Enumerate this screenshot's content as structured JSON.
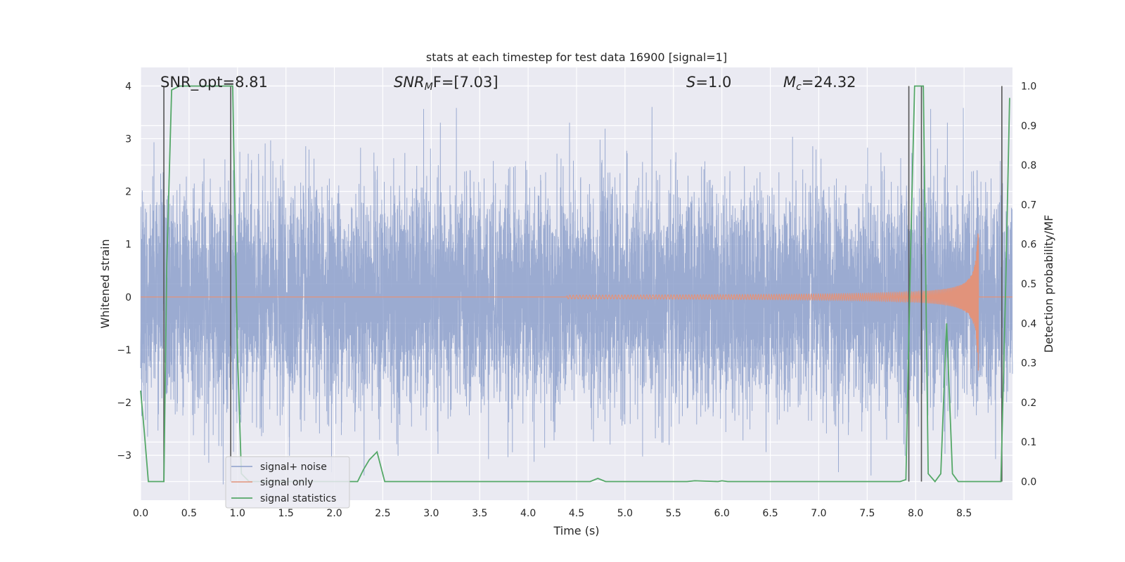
{
  "chart_data": {
    "type": "line",
    "title": "stats at each timestep for test data 16900 [signal=1]",
    "xlabel": "Time (s)",
    "ylabel_left": "Whitened strain",
    "ylabel_right": "Detection probability/MF",
    "xlim": [
      0.0,
      9.0
    ],
    "ylim_left": [
      -3.85,
      4.35
    ],
    "ylim_right": [
      -0.047,
      1.047
    ],
    "x_ticks": [
      "0.0",
      "0.5",
      "1.0",
      "1.5",
      "2.0",
      "2.5",
      "3.0",
      "3.5",
      "4.0",
      "4.5",
      "5.0",
      "5.5",
      "6.0",
      "6.5",
      "7.0",
      "7.5",
      "8.0",
      "8.5"
    ],
    "x_tick_values": [
      0.0,
      0.5,
      1.0,
      1.5,
      2.0,
      2.5,
      3.0,
      3.5,
      4.0,
      4.5,
      5.0,
      5.5,
      6.0,
      6.5,
      7.0,
      7.5,
      8.0,
      8.5
    ],
    "y_left_ticks": [
      "−3",
      "−2",
      "−1",
      "0",
      "1",
      "2",
      "3",
      "4"
    ],
    "y_left_tick_values": [
      -3,
      -2,
      -1,
      0,
      1,
      2,
      3,
      4
    ],
    "y_right_ticks": [
      "0.0",
      "0.1",
      "0.2",
      "0.3",
      "0.4",
      "0.5",
      "0.6",
      "0.7",
      "0.8",
      "0.9",
      "1.0"
    ],
    "y_right_tick_values": [
      0.0,
      0.1,
      0.2,
      0.3,
      0.4,
      0.5,
      0.6,
      0.7,
      0.8,
      0.9,
      1.0
    ],
    "grid": true,
    "legend_position": "lower-left",
    "annotations": [
      {
        "text": "SNR_opt=8.81",
        "x": 0.2,
        "y_right": 0.99
      },
      {
        "text_main": "SNR",
        "text_sub": "M",
        "text_tail": "F=[7.03]",
        "italic": true,
        "x": 2.6,
        "y_right": 0.99
      },
      {
        "text_main": "S",
        "text_tail": "=1.0",
        "italic": true,
        "x": 5.6,
        "y_right": 0.99
      },
      {
        "text_main": "M",
        "text_sub": "c",
        "text_tail": "=24.32",
        "italic": true,
        "x": 6.6,
        "y_right": 0.99
      }
    ],
    "series": [
      {
        "name": "signal+ noise",
        "color": "#8da0cb",
        "kind": "noise",
        "sigma": 1.0,
        "samples": 9000
      },
      {
        "name": "signal only",
        "color": "#e1937b",
        "kind": "chirp",
        "t_merge": 8.65,
        "peak_amplitude": 1.8
      },
      {
        "name": "signal statistics",
        "color": "#55a868",
        "axis": "right",
        "x": [
          0.0,
          0.04,
          0.08,
          0.16,
          0.24,
          0.27,
          0.32,
          0.4,
          0.48,
          0.88,
          0.95,
          1.0,
          1.04,
          1.12,
          2.24,
          2.3,
          2.36,
          2.44,
          2.52,
          2.6,
          4.56,
          4.64,
          4.72,
          4.8,
          5.56,
          5.64,
          5.72,
          5.96,
          6.0,
          6.06,
          7.84,
          7.9,
          7.95,
          7.99,
          8.04,
          8.08,
          8.13,
          8.2,
          8.26,
          8.32,
          8.38,
          8.44,
          8.88,
          8.93,
          8.97
        ],
        "y": [
          0.23,
          0.12,
          0.0,
          0.0,
          0.0,
          0.55,
          0.99,
          1.0,
          1.0,
          1.0,
          1.0,
          0.32,
          0.02,
          0.0,
          0.0,
          0.03,
          0.055,
          0.075,
          0.0,
          0.0,
          0.0,
          0.0,
          0.008,
          0.0,
          0.0,
          0.0,
          0.002,
          0.0,
          0.002,
          0.0,
          0.0,
          0.005,
          0.6,
          1.0,
          1.0,
          1.0,
          0.02,
          0.0,
          0.02,
          0.4,
          0.02,
          0.0,
          0.0,
          0.5,
          0.97
        ]
      }
    ],
    "vertical_markers": [
      {
        "x": 0.24,
        "y_top": 1.0,
        "y_bottom": 0.0
      },
      {
        "x": 0.93,
        "y_top": 1.0,
        "y_bottom": 0.0
      },
      {
        "x": 7.93,
        "y_top": 1.0,
        "y_bottom": 0.0
      },
      {
        "x": 8.06,
        "y_top": 1.0,
        "y_bottom": 0.0
      },
      {
        "x": 8.89,
        "y_top": 1.0,
        "y_bottom": 0.0
      }
    ],
    "marker_color": "#555555"
  }
}
